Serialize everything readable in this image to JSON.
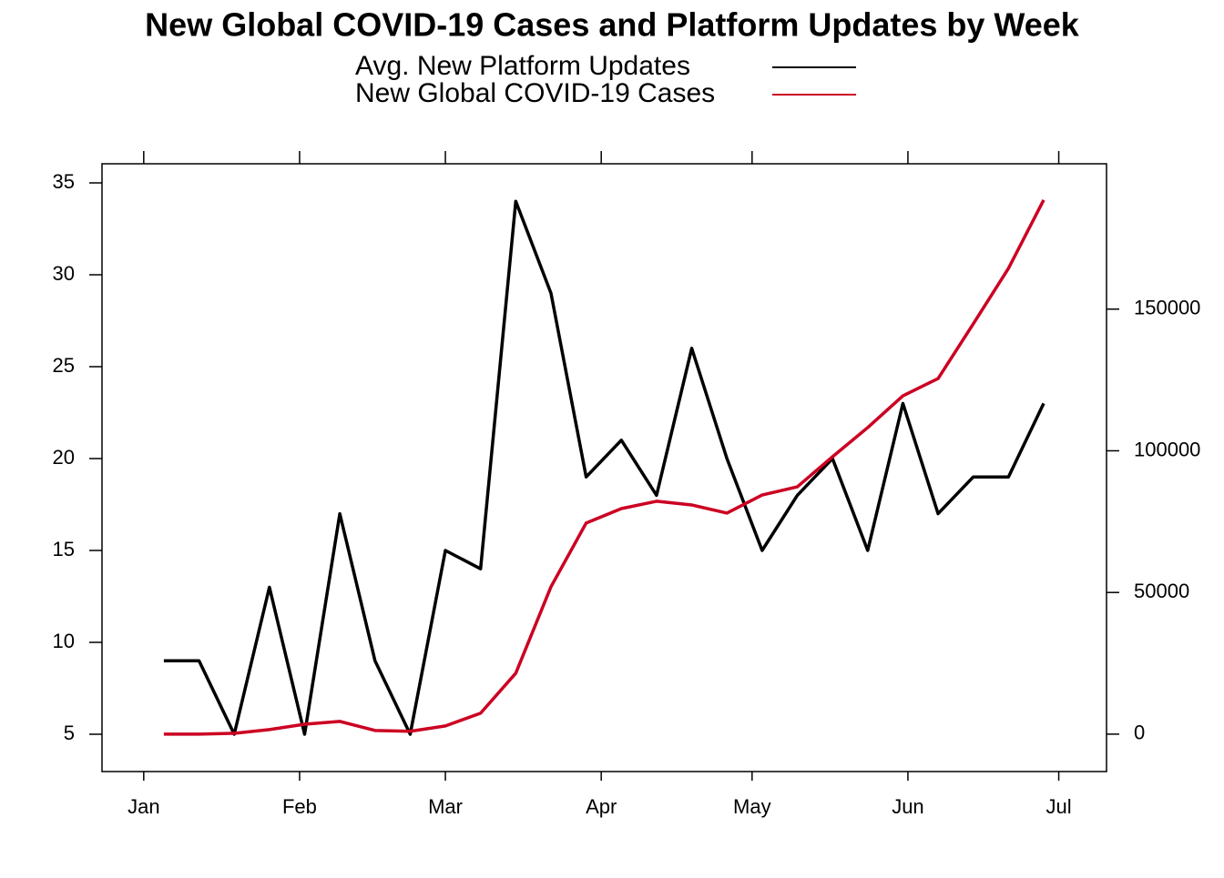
{
  "chart_data": {
    "type": "line",
    "title": "New Global COVID-19 Cases and Platform Updates by Week",
    "x": [
      4,
      11,
      18,
      25,
      32,
      39,
      46,
      53,
      60,
      67,
      74,
      81,
      88,
      95,
      102,
      109,
      116,
      123,
      130,
      137,
      144,
      151,
      158,
      165,
      172,
      179
    ],
    "xlim": [
      -8.3,
      191.5
    ],
    "xticks": [
      {
        "value": 0,
        "label": "Jan"
      },
      {
        "value": 31,
        "label": "Feb"
      },
      {
        "value": 60,
        "label": "Mar"
      },
      {
        "value": 91,
        "label": "Apr"
      },
      {
        "value": 121,
        "label": "May"
      },
      {
        "value": 152,
        "label": "Jun"
      },
      {
        "value": 182,
        "label": "Jul"
      }
    ],
    "ylim": [
      2.97,
      36.04
    ],
    "yticks": [
      5,
      10,
      15,
      20,
      25,
      30,
      35
    ],
    "y2lim": [
      -13200,
      201300
    ],
    "y2ticks": [
      0,
      50000,
      100000,
      150000
    ],
    "series": [
      {
        "name": "Avg. New Platform Updates",
        "color": "#000000",
        "values": [
          9,
          9,
          5,
          13,
          5,
          17,
          9,
          5,
          15,
          14,
          34,
          29,
          19,
          21,
          18,
          26,
          20,
          15,
          18,
          20,
          15,
          23,
          17,
          19,
          19,
          23
        ]
      },
      {
        "name": "New Global COVID-19 Cases",
        "color": "#cc0022",
        "axis": "y2",
        "values": [
          0,
          0,
          300,
          1600,
          3500,
          4500,
          1300,
          1000,
          2900,
          7400,
          21500,
          52000,
          74500,
          79600,
          82200,
          80900,
          78000,
          84400,
          87300,
          97900,
          108200,
          119400,
          125500,
          144800,
          164400,
          188500
        ]
      }
    ]
  }
}
